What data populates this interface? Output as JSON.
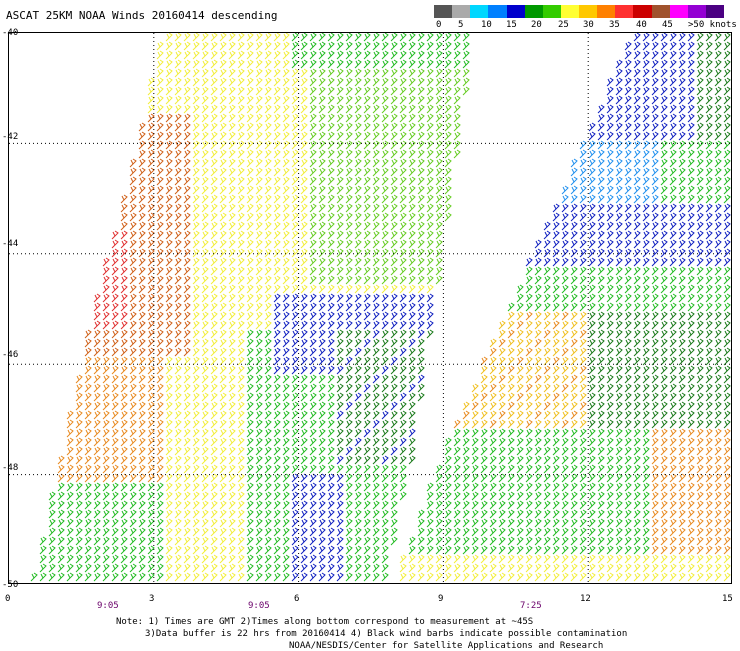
{
  "title": "ASCAT 25KM NOAA Winds 20160414 descending",
  "legend": {
    "labels": [
      "0",
      "5",
      "10",
      "15",
      "20",
      "25",
      "30",
      "35",
      "40",
      "45",
      ">50 knots"
    ],
    "colors": [
      "#555555",
      "#aaaaaa",
      "#00d7ff",
      "#0080ff",
      "#0000cc",
      "#009900",
      "#33cc00",
      "#ffff33",
      "#ffc800",
      "#ff8000",
      "#ff3030",
      "#cc0000",
      "#a0522d",
      "#ff00ff",
      "#9400d3",
      "#4b0082"
    ]
  },
  "axes": {
    "lat_labels": [
      "-40",
      "-42",
      "-44",
      "-46",
      "-48",
      "-50"
    ],
    "lon_labels": [
      "0",
      "3",
      "6",
      "9",
      "12",
      "15"
    ],
    "lat_range": [
      -50,
      -40
    ],
    "lon_range": [
      0,
      15
    ]
  },
  "time_labels": [
    "9:05",
    "9:05",
    "7:25"
  ],
  "notes": {
    "line1": "Note: 1) Times are GMT 2)Times along bottom correspond to measurement at ~45S",
    "line2": "3)Data buffer is 22 hrs from 20160414 4) Black wind barbs indicate possible contamination",
    "line3": "NOAA/NESDIS/Center for Satellite Applications and Research"
  }
}
